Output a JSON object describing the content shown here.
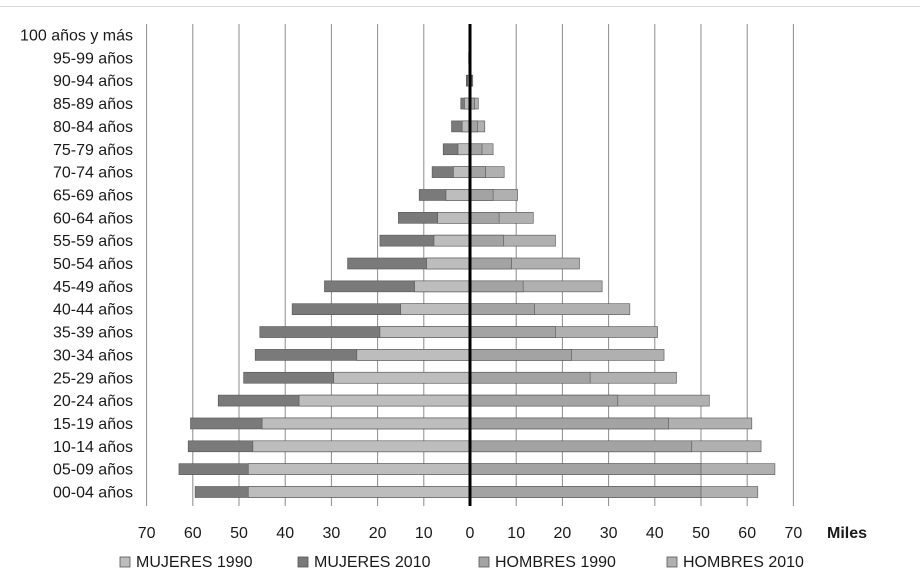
{
  "chart_data": {
    "type": "bar",
    "orientation": "horizontal-pyramid",
    "categories": [
      "100 años y más",
      "95-99 años",
      "90-94 años",
      "85-89 años",
      "80-84 años",
      "75-79 años",
      "70-74 años",
      "65-69 años",
      "60-64 años",
      "55-59 años",
      "50-54 años",
      "45-49 años",
      "40-44 años",
      "35-39 años",
      "30-34 años",
      "25-29 años",
      "20-24 años",
      "15-19 años",
      "10-14 años",
      "05-09 años",
      "00-04 años"
    ],
    "series": [
      {
        "name": "MUJERES 1990",
        "side": "left",
        "values": [
          0,
          0.2,
          0.5,
          1.2,
          1.7,
          2.6,
          3.6,
          5.2,
          7.0,
          7.8,
          9.4,
          12.0,
          15.0,
          19.5,
          24.5,
          29.5,
          37.0,
          45.0,
          47.0,
          48.0,
          48.0
        ]
      },
      {
        "name": "MUJERES 2010",
        "side": "left",
        "values": [
          0.1,
          0.3,
          0.8,
          2.0,
          4.0,
          5.8,
          8.2,
          11.0,
          15.5,
          19.5,
          26.5,
          31.5,
          38.5,
          45.5,
          46.5,
          49.0,
          54.5,
          60.5,
          61.0,
          63.0,
          59.5
        ]
      },
      {
        "name": "HOMBRES 1990",
        "side": "right",
        "values": [
          0,
          0.1,
          0.4,
          1.0,
          1.6,
          2.6,
          3.4,
          5.0,
          6.3,
          7.3,
          9.0,
          11.5,
          14.0,
          18.5,
          22.0,
          26.0,
          32.0,
          43.0,
          48.0,
          50.0,
          50.0
        ]
      },
      {
        "name": "HOMBRES 2010",
        "side": "right",
        "values": [
          0.1,
          0.2,
          0.6,
          1.8,
          3.2,
          5.0,
          7.4,
          10.3,
          13.7,
          18.5,
          23.7,
          28.6,
          34.6,
          40.6,
          42.0,
          44.7,
          51.8,
          61.0,
          63.0,
          66.0,
          62.3
        ]
      }
    ],
    "xlabel": "Miles",
    "x_ticks": [
      "70",
      "60",
      "50",
      "40",
      "30",
      "20",
      "10",
      "0",
      "10",
      "20",
      "30",
      "40",
      "50",
      "60",
      "70"
    ],
    "xlim": [
      -70,
      70
    ],
    "grid": true,
    "legend_position": "bottom",
    "colors": {
      "mujeres_1990": "#bdbdbd",
      "mujeres_2010": "#7a7a7a",
      "hombres_1990": "#a3a3a3",
      "hombres_2010": "#b0b0b0",
      "grid": "#8c8c8c",
      "center_axis": "#000000",
      "bar_stroke": "#555555"
    }
  }
}
